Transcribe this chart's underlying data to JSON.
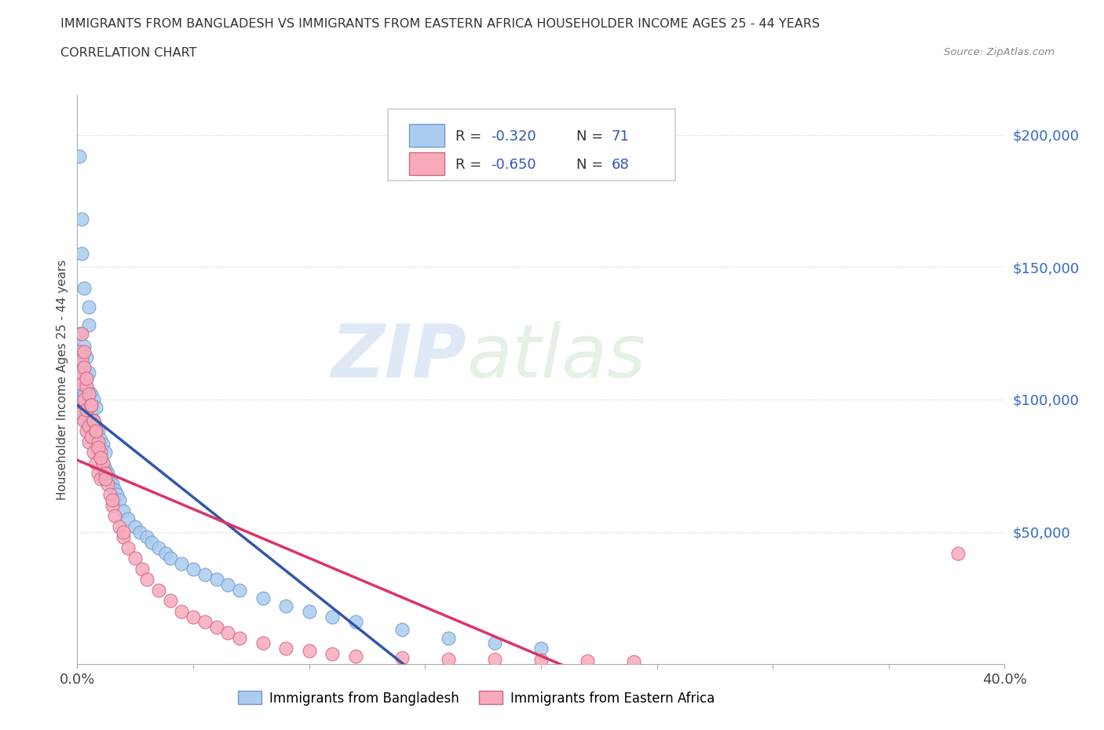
{
  "title_line1": "IMMIGRANTS FROM BANGLADESH VS IMMIGRANTS FROM EASTERN AFRICA HOUSEHOLDER INCOME AGES 25 - 44 YEARS",
  "title_line2": "CORRELATION CHART",
  "source_text": "Source: ZipAtlas.com",
  "ylabel": "Householder Income Ages 25 - 44 years",
  "xlim": [
    0.0,
    0.4
  ],
  "ylim": [
    0,
    215000
  ],
  "ytick_values": [
    50000,
    100000,
    150000,
    200000
  ],
  "ytick_labels": [
    "$50,000",
    "$100,000",
    "$150,000",
    "$200,000"
  ],
  "bangladesh_color": "#aaccf0",
  "bangladesh_edge_color": "#7099cc",
  "eastern_africa_color": "#f8aabb",
  "eastern_africa_edge_color": "#cc6688",
  "bangladesh_line_color": "#3355aa",
  "eastern_africa_line_color": "#dd3366",
  "dashed_line_color": "#aaaaaa",
  "R_bangladesh": -0.32,
  "N_bangladesh": 71,
  "R_eastern_africa": -0.65,
  "N_eastern_africa": 68,
  "legend_label_bangladesh": "Immigrants from Bangladesh",
  "legend_label_eastern_africa": "Immigrants from Eastern Africa",
  "watermark_ZIP": "ZIP",
  "watermark_atlas": "atlas",
  "bangladesh_x": [
    0.001,
    0.001,
    0.001,
    0.002,
    0.002,
    0.002,
    0.003,
    0.003,
    0.003,
    0.003,
    0.004,
    0.004,
    0.004,
    0.004,
    0.005,
    0.005,
    0.005,
    0.005,
    0.006,
    0.006,
    0.006,
    0.007,
    0.007,
    0.007,
    0.008,
    0.008,
    0.008,
    0.009,
    0.009,
    0.01,
    0.01,
    0.011,
    0.011,
    0.012,
    0.012,
    0.013,
    0.014,
    0.015,
    0.016,
    0.017,
    0.018,
    0.02,
    0.022,
    0.025,
    0.027,
    0.03,
    0.032,
    0.035,
    0.038,
    0.04,
    0.045,
    0.05,
    0.055,
    0.06,
    0.065,
    0.07,
    0.08,
    0.09,
    0.1,
    0.11,
    0.12,
    0.14,
    0.16,
    0.18,
    0.2,
    0.001,
    0.002,
    0.002,
    0.003,
    0.005,
    0.005
  ],
  "bangladesh_y": [
    105000,
    115000,
    125000,
    100000,
    108000,
    118000,
    95000,
    102000,
    112000,
    120000,
    92000,
    98000,
    108000,
    116000,
    90000,
    96000,
    103000,
    110000,
    88000,
    95000,
    102000,
    85000,
    92000,
    100000,
    82000,
    90000,
    97000,
    80000,
    88000,
    78000,
    85000,
    76000,
    83000,
    74000,
    80000,
    72000,
    70000,
    68000,
    66000,
    64000,
    62000,
    58000,
    55000,
    52000,
    50000,
    48000,
    46000,
    44000,
    42000,
    40000,
    38000,
    36000,
    34000,
    32000,
    30000,
    28000,
    25000,
    22000,
    20000,
    18000,
    16000,
    13000,
    10000,
    8000,
    6000,
    192000,
    168000,
    155000,
    142000,
    135000,
    128000
  ],
  "eastern_africa_x": [
    0.001,
    0.001,
    0.001,
    0.002,
    0.002,
    0.002,
    0.003,
    0.003,
    0.003,
    0.004,
    0.004,
    0.004,
    0.005,
    0.005,
    0.005,
    0.006,
    0.006,
    0.007,
    0.007,
    0.008,
    0.008,
    0.009,
    0.009,
    0.01,
    0.01,
    0.011,
    0.012,
    0.013,
    0.014,
    0.015,
    0.016,
    0.018,
    0.02,
    0.022,
    0.025,
    0.028,
    0.03,
    0.035,
    0.04,
    0.045,
    0.05,
    0.055,
    0.06,
    0.065,
    0.07,
    0.08,
    0.09,
    0.1,
    0.11,
    0.12,
    0.14,
    0.16,
    0.18,
    0.2,
    0.22,
    0.24,
    0.002,
    0.003,
    0.004,
    0.006,
    0.007,
    0.008,
    0.009,
    0.01,
    0.012,
    0.015,
    0.02,
    0.38
  ],
  "eastern_africa_y": [
    110000,
    118000,
    98000,
    106000,
    115000,
    95000,
    100000,
    112000,
    92000,
    105000,
    88000,
    96000,
    102000,
    90000,
    84000,
    98000,
    86000,
    92000,
    80000,
    88000,
    76000,
    84000,
    72000,
    80000,
    70000,
    76000,
    72000,
    68000,
    64000,
    60000,
    56000,
    52000,
    48000,
    44000,
    40000,
    36000,
    32000,
    28000,
    24000,
    20000,
    18000,
    16000,
    14000,
    12000,
    10000,
    8000,
    6000,
    5000,
    4000,
    3000,
    2500,
    2000,
    1800,
    1500,
    1200,
    1000,
    125000,
    118000,
    108000,
    98000,
    92000,
    88000,
    82000,
    78000,
    70000,
    62000,
    50000,
    42000
  ]
}
